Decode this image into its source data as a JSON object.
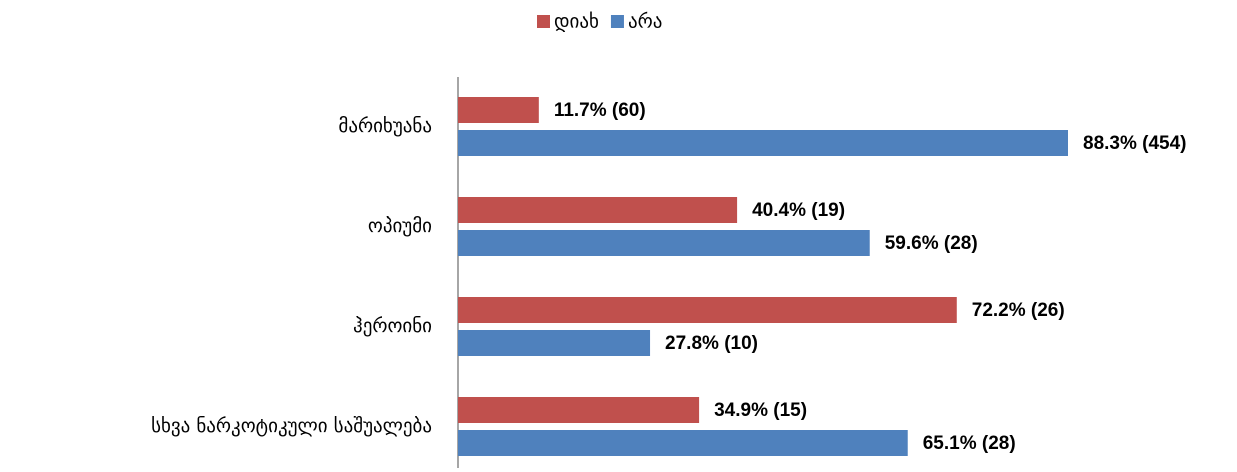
{
  "chart_data": {
    "type": "barh",
    "categories": [
      "მარიხუანა",
      "ოპიუმი",
      "ჰეროინი",
      "სხვა ნარკოტიკული საშუალება"
    ],
    "series": [
      {
        "name": "დიახ",
        "color": "#c0504d",
        "values": [
          11.7,
          40.4,
          72.2,
          34.9
        ],
        "value_labels": [
          "11.7% (60)",
          "40.4% (19)",
          "72.2% (26)",
          "34.9% (15)"
        ]
      },
      {
        "name": "არა",
        "color": "#4f81bd",
        "values": [
          88.3,
          59.6,
          27.8,
          65.1
        ],
        "value_labels": [
          "88.3% (454)",
          "59.6% (28)",
          "27.8% (10)",
          "65.1% (28)"
        ]
      }
    ],
    "xlim": [
      0,
      100
    ],
    "legend": "top"
  }
}
